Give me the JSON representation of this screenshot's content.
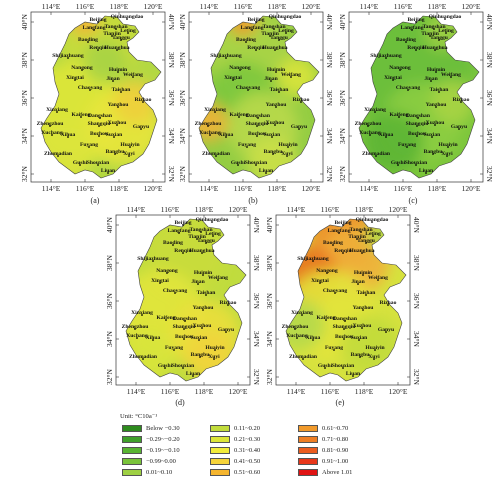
{
  "lon_ticks": [
    "114°E",
    "116°E",
    "118°E",
    "120°E"
  ],
  "lat_ticks": [
    "40°N",
    "38°N",
    "36°N",
    "34°N",
    "32°N"
  ],
  "panels": [
    {
      "caption": "(a)",
      "scheme": "a"
    },
    {
      "caption": "(b)",
      "scheme": "b"
    },
    {
      "caption": "(c)",
      "scheme": "c"
    },
    {
      "caption": "(d)",
      "scheme": "d"
    },
    {
      "caption": "(e)",
      "scheme": "e"
    }
  ],
  "cities": [
    "Beijing",
    "Qinhuangdao",
    "Langfang",
    "Tangshan",
    "Leting",
    "Tianjin",
    "Tanggu",
    "Baoding",
    "Renqiu",
    "Huanghua",
    "Shijiazhuang",
    "Nangong",
    "Huimin",
    "Xingtai",
    "Weifang",
    "Jinan",
    "Chaoyang",
    "Taishan",
    "Rizhao",
    "Xinxiang",
    "Yanzhou",
    "Kaifeng",
    "Dangshan",
    "Zhengzhou",
    "Shangqiu",
    "Xuzhou",
    "Ganyu",
    "Xuchang",
    "Xihua",
    "Bozhou",
    "Suxian",
    "Fuyang",
    "Huaiyin",
    "Zhumadian",
    "Bangbu",
    "Xuyi",
    "Gushi",
    "Shouxian",
    "Liuan"
  ],
  "legend": {
    "unit": "Unit: °C10a⁻¹",
    "items": [
      {
        "label": "Below −0.30",
        "color": "#2e8b1e"
      },
      {
        "label": "−0.29~−0.20",
        "color": "#3fa02a"
      },
      {
        "label": "−0.19~−0.10",
        "color": "#58b432"
      },
      {
        "label": "−0.99~0.00",
        "color": "#79c33a"
      },
      {
        "label": "0.01~0.10",
        "color": "#9ed043"
      },
      {
        "label": "0.11~0.20",
        "color": "#c2dc3c"
      },
      {
        "label": "0.21~0.30",
        "color": "#dde638"
      },
      {
        "label": "0.31~0.40",
        "color": "#f3ec3a"
      },
      {
        "label": "0.41~0.50",
        "color": "#f7d43a"
      },
      {
        "label": "0.51~0.60",
        "color": "#f5b52e"
      },
      {
        "label": "0.61~0.70",
        "color": "#f19a2b"
      },
      {
        "label": "0.71~0.80",
        "color": "#ee7e24"
      },
      {
        "label": "0.81~0.90",
        "color": "#eb5c1f"
      },
      {
        "label": "0.91~1.00",
        "color": "#e8371a"
      },
      {
        "label": "Above 1.01",
        "color": "#e01414"
      }
    ]
  }
}
